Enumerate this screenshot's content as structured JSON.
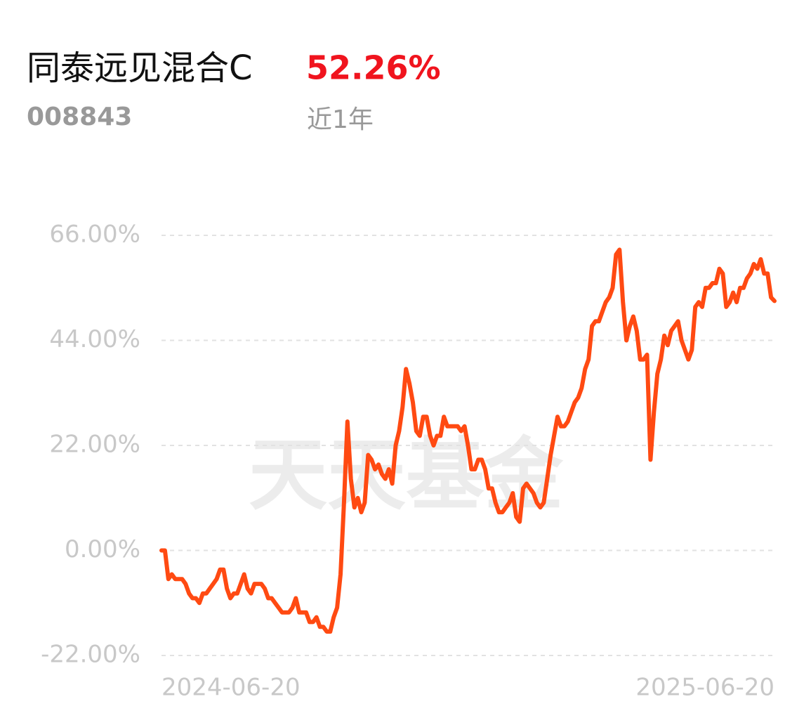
{
  "header": {
    "name": "同泰远见混合C",
    "return": "52.26%",
    "code": "008843",
    "period": "近1年"
  },
  "watermark": "天天基金",
  "chart_data": {
    "type": "line",
    "categories": [
      "2024-06-20",
      null,
      null,
      null,
      null,
      null,
      null,
      null,
      null,
      null,
      null,
      null,
      null,
      null,
      null,
      null,
      null,
      null,
      null,
      null,
      null,
      null,
      null,
      null,
      null,
      null,
      null,
      null,
      null,
      null,
      null,
      null,
      null,
      null,
      null,
      null,
      null,
      null,
      null,
      null,
      null,
      null,
      null,
      null,
      null,
      null,
      null,
      null,
      null,
      null,
      null,
      null,
      null,
      null,
      null,
      null,
      null,
      null,
      null,
      null,
      null,
      null,
      null,
      null,
      null,
      null,
      null,
      null,
      null,
      null,
      null,
      null,
      null,
      null,
      null,
      null,
      null,
      null,
      null,
      null,
      null,
      null,
      null,
      null,
      null,
      null,
      null,
      null,
      null,
      null,
      null,
      null,
      null,
      null,
      null,
      null,
      null,
      null,
      null,
      null,
      null,
      null,
      null,
      null,
      null,
      null,
      null,
      null,
      null,
      null,
      null,
      null,
      null,
      null,
      null,
      null,
      null,
      null,
      null,
      null,
      null,
      null,
      null,
      null,
      null,
      null,
      null,
      null,
      null,
      null,
      null,
      null,
      null,
      null,
      null,
      null,
      null,
      null,
      null,
      null,
      null,
      null,
      null,
      null,
      null,
      null,
      null,
      null,
      null,
      null,
      null,
      null,
      null,
      null,
      null,
      null,
      null,
      null,
      null,
      null,
      null,
      null,
      null,
      null,
      null,
      null,
      null,
      null,
      null,
      null,
      null,
      null,
      null,
      null,
      null,
      null,
      null,
      null,
      "2025-06-20"
    ],
    "series": [
      {
        "color": "#ff4a12",
        "values": [
          0,
          0,
          -6,
          -5,
          -6,
          -6,
          -6,
          -7,
          -9,
          -10,
          -10,
          -11,
          -9,
          -9,
          -8,
          -7,
          -6,
          -4,
          -4,
          -8,
          -10,
          -9,
          -9,
          -7,
          -5,
          -8,
          -9,
          -7,
          -7,
          -7,
          -8,
          -10,
          -10,
          -11,
          -12,
          -13,
          -13,
          -13,
          -12,
          -10,
          -13,
          -13,
          -13,
          -15,
          -15,
          -14,
          -16,
          -16,
          -17,
          -17,
          -14,
          -12,
          -5,
          10,
          27,
          15,
          9,
          11,
          8,
          10,
          20,
          19,
          17,
          18,
          16,
          15,
          17,
          14,
          22,
          25,
          30,
          38,
          35,
          31,
          25,
          24,
          28,
          28,
          24,
          22,
          24,
          24,
          28,
          26,
          26,
          26,
          26,
          25,
          26,
          22,
          17,
          17,
          19,
          19,
          17,
          13,
          13,
          10,
          8,
          8,
          9,
          10,
          12,
          7,
          6,
          13,
          14,
          13,
          12,
          10,
          9,
          10,
          15,
          20,
          24,
          28,
          26,
          26,
          27,
          29,
          31,
          32,
          34,
          38,
          40,
          47,
          48,
          48,
          50,
          52,
          53,
          55,
          62,
          63,
          52,
          44,
          47,
          49,
          46,
          40,
          40,
          41,
          19,
          29,
          37,
          40,
          45,
          43,
          46,
          47,
          48,
          44,
          42,
          40,
          42,
          51,
          52,
          51,
          55,
          55,
          56,
          56,
          59,
          58,
          51,
          52,
          54,
          52,
          55,
          55,
          57,
          58,
          60,
          59,
          61,
          58,
          58,
          53,
          52.26
        ]
      }
    ],
    "ylim": [
      -22,
      66
    ],
    "yticks": [
      {
        "value": -22,
        "label": "-22.00%"
      },
      {
        "value": 0,
        "label": "0.00%"
      },
      {
        "value": 22,
        "label": "22.00%"
      },
      {
        "value": 44,
        "label": "44.00%"
      },
      {
        "value": 66,
        "label": "66.00%"
      }
    ],
    "grid": true
  }
}
